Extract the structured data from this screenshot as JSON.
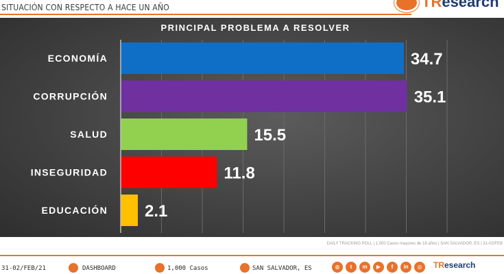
{
  "header": {
    "title": "SITUACIÓN CON RESPECTO A HACE UN AÑO",
    "logo_text": "TResearch",
    "logo_prefix": "TR",
    "logo_suffix": "esearch"
  },
  "chart_data": {
    "type": "bar",
    "orientation": "horizontal",
    "title": "PRINCIPAL PROBLEMA A RESOLVER",
    "categories": [
      "ECONOMÍA",
      "CORRUPCIÓN",
      "SALUD",
      "INSEGURIDAD",
      "EDUCACIÓN"
    ],
    "values": [
      34.7,
      35.1,
      15.5,
      11.8,
      2.1
    ],
    "value_labels": [
      "34.7",
      "35.1",
      "15.5",
      "11.8",
      "2.1"
    ],
    "colors": [
      "#0f6fc6",
      "#7030a0",
      "#92d050",
      "#ff0000",
      "#ffc000"
    ],
    "xlim": [
      0,
      40
    ],
    "grid": true
  },
  "footer": {
    "note": "DAILY TRACKING POLL | 1,000 Casos mayores de 18 años | SAN SALVADOR, ES | 31-02/FEB",
    "date": "31-02/FEB/21",
    "dashboard": "DASHBOARD",
    "cases": "1,000 Casos",
    "location": "SAN SALVADOR, ES",
    "logo_prefix": "TR",
    "logo_suffix": "esearch",
    "social_icons": [
      "globe-icon",
      "twitter-icon",
      "messenger-icon",
      "youtube-icon",
      "facebook-icon",
      "linkedin-icon",
      "instagram-icon"
    ]
  },
  "colors": {
    "accent": "#e8722a",
    "brand_dark": "#1e3b6e"
  }
}
